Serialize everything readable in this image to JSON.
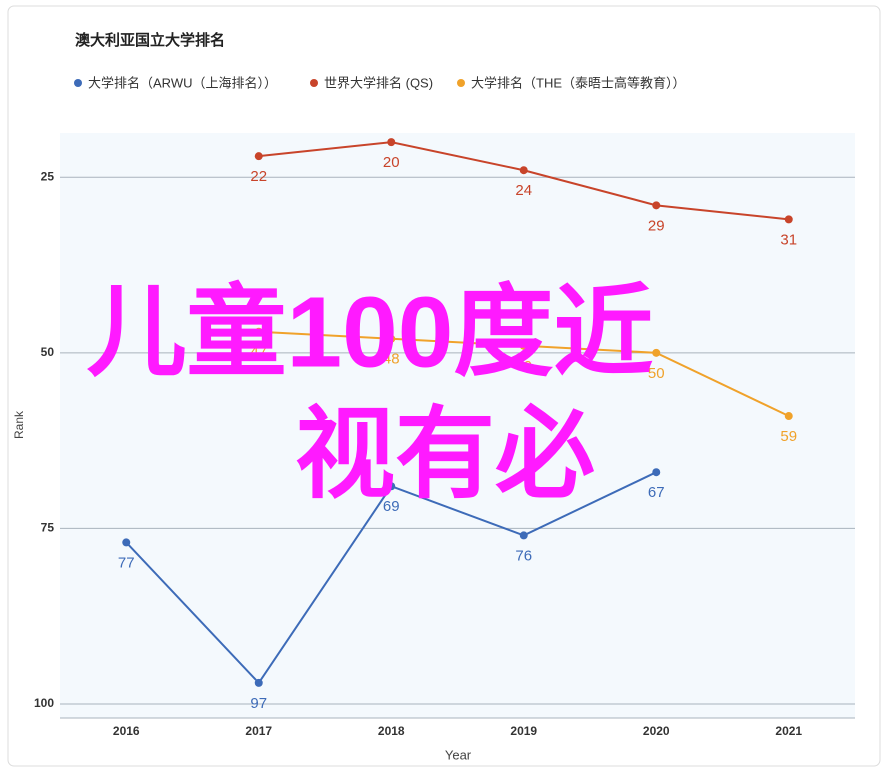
{
  "chart_data": {
    "type": "line",
    "title": "澳大利亚国立大学排名",
    "xlabel": "Year",
    "ylabel": "Rank",
    "categories": [
      "2016",
      "2017",
      "2018",
      "2019",
      "2020",
      "2021"
    ],
    "series": [
      {
        "name": "大学排名（ARWU（上海排名））",
        "color": "#3d6bb8",
        "values": [
          77,
          97,
          69,
          76,
          67,
          null
        ]
      },
      {
        "name": "世界大学排名 (QS)",
        "color": "#c8442a",
        "values": [
          null,
          22,
          20,
          24,
          29,
          31
        ]
      },
      {
        "name": "大学排名（THE（泰晤士高等教育））",
        "color": "#f0a22a",
        "values": [
          null,
          47,
          48,
          49,
          50,
          59
        ]
      }
    ],
    "ylim": [
      18.7,
      102
    ],
    "y_inverted": true,
    "yticks": [
      25,
      50,
      75,
      100
    ],
    "grid": true,
    "legend": "top",
    "annotations": [
      "儿童100度近",
      "视有必"
    ],
    "annotation_color": "#ff1aff"
  }
}
